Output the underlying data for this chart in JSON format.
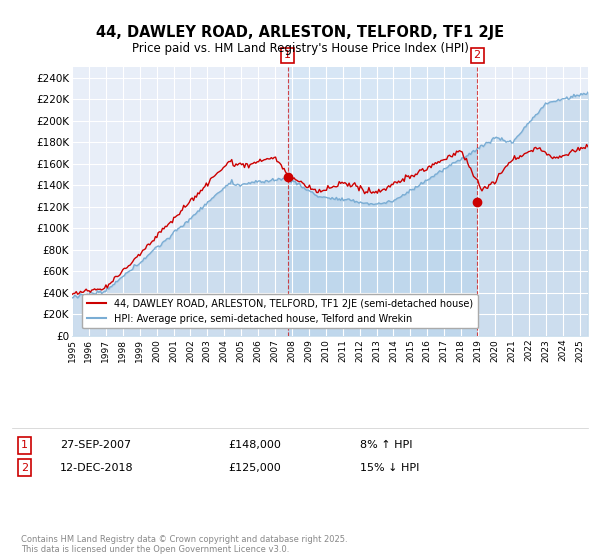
{
  "title": "44, DAWLEY ROAD, ARLESTON, TELFORD, TF1 2JE",
  "subtitle": "Price paid vs. HM Land Registry's House Price Index (HPI)",
  "legend_line1": "44, DAWLEY ROAD, ARLESTON, TELFORD, TF1 2JE (semi-detached house)",
  "legend_line2": "HPI: Average price, semi-detached house, Telford and Wrekin",
  "price_color": "#cc0000",
  "hpi_color": "#7aadd4",
  "hpi_fill_color": "#d0e4f5",
  "annotation1_label": "1",
  "annotation1_date": "27-SEP-2007",
  "annotation1_price": "£148,000",
  "annotation1_pct": "8% ↑ HPI",
  "annotation2_label": "2",
  "annotation2_date": "12-DEC-2018",
  "annotation2_price": "£125,000",
  "annotation2_pct": "15% ↓ HPI",
  "footer": "Contains HM Land Registry data © Crown copyright and database right 2025.\nThis data is licensed under the Open Government Licence v3.0.",
  "ylim": [
    0,
    250000
  ],
  "yticks": [
    0,
    20000,
    40000,
    60000,
    80000,
    100000,
    120000,
    140000,
    160000,
    180000,
    200000,
    220000,
    240000
  ],
  "ytick_labels": [
    "£0",
    "£20K",
    "£40K",
    "£60K",
    "£80K",
    "£100K",
    "£120K",
    "£140K",
    "£160K",
    "£180K",
    "£200K",
    "£220K",
    "£240K"
  ],
  "sale1_x": 2007.74,
  "sale1_y": 148000,
  "sale2_x": 2018.95,
  "sale2_y": 125000,
  "xmin": 1995,
  "xmax": 2025.5,
  "bg_color": "#e8eef8"
}
